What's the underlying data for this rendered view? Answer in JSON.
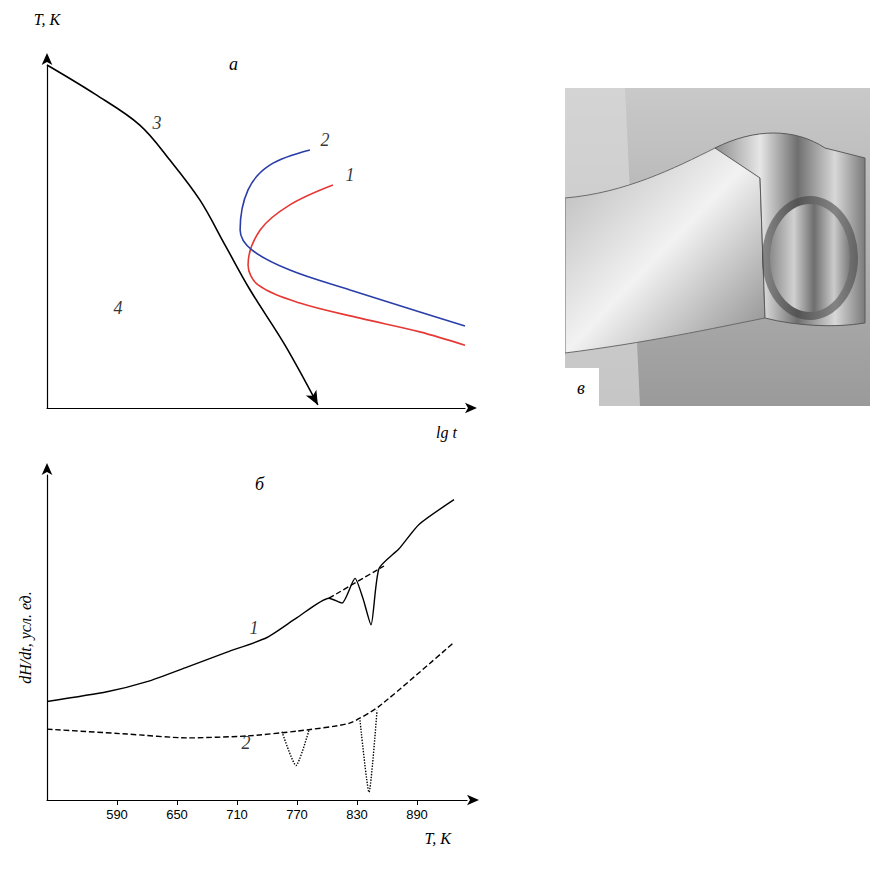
{
  "chart_data": [
    {
      "type": "line",
      "title": "а",
      "x_label": "lg t",
      "y_label": "T, K",
      "xlim": [
        0,
        100
      ],
      "ylim": [
        0,
        100
      ],
      "tick_labels": false,
      "series": [
        {
          "color": "#e53935",
          "line_style": "solid",
          "marker": "none",
          "x": [
            68.4,
            58.1,
            51.0,
            48.1,
            50.5,
            60.5,
            74.9,
            89.2,
            100
          ],
          "values": [
            65.0,
            59.2,
            51.9,
            41.7,
            35.9,
            30.6,
            26.2,
            22.2,
            18.3
          ]
        },
        {
          "color": "#2a3ea8",
          "line_style": "solid",
          "marker": "none",
          "x": [
            62.9,
            53.3,
            48.1,
            46.2,
            49.0,
            58.1,
            72.5,
            89.2,
            100
          ],
          "values": [
            75.2,
            70.8,
            63.6,
            51.9,
            46.1,
            40.2,
            34.4,
            28.0,
            23.9
          ]
        },
        {
          "color": "#000000",
          "line_style": "solid",
          "marker": "arrow",
          "x": [
            0,
            11.5,
            22.2,
            29.4,
            36.6,
            42.6,
            48.6,
            56.9,
            64.8
          ],
          "values": [
            100,
            91.5,
            82.5,
            72.3,
            60.6,
            47.5,
            34.4,
            18.4,
            0.9
          ]
        }
      ],
      "annotations": [
        {
          "text": "1",
          "x": 72.5,
          "y": 67.9
        },
        {
          "text": "2",
          "x": 66.5,
          "y": 78.1
        },
        {
          "text": "3",
          "x": 26.3,
          "y": 83.1
        },
        {
          "text": "4",
          "x": 17.0,
          "y": 29.2
        }
      ]
    },
    {
      "type": "line",
      "title": "б",
      "x_label": "T, K",
      "y_label": "dH/dt, усл. ед.",
      "xlim": [
        520,
        940
      ],
      "xticks": [
        590,
        650,
        710,
        770,
        830,
        890
      ],
      "ylim": [
        0,
        100
      ],
      "tick_labels": "x",
      "series": [
        {
          "color": "#000000",
          "line_style": "solid",
          "marker": "none",
          "x": [
            520,
            580,
            620,
            660,
            700,
            740,
            770,
            802,
            815,
            828,
            836,
            844,
            852,
            872,
            892,
            927
          ],
          "values": [
            30.3,
            33.3,
            36.4,
            40.9,
            45.5,
            50.0,
            56.1,
            62.1,
            60.6,
            68.2,
            62.0,
            53.9,
            71.2,
            77.3,
            84.8,
            92.4
          ]
        },
        {
          "color": "#000000",
          "line_style": "dashed",
          "marker": "none",
          "x": [
            802,
            857
          ],
          "values": [
            62.1,
            72.0
          ]
        },
        {
          "color": "#000000",
          "line_style": "dashed",
          "marker": "none",
          "x": [
            520,
            600,
            660,
            720,
            770,
            822,
            852,
            927
          ],
          "values": [
            21.8,
            20.3,
            19.1,
            19.7,
            21.2,
            23.6,
            28.8,
            48.5
          ]
        },
        {
          "color": "#000000",
          "line_style": "dotted",
          "marker": "none",
          "x": [
            755,
            769,
            782
          ],
          "values": [
            21.0,
            10.6,
            21.5
          ]
        },
        {
          "color": "#000000",
          "line_style": "dotted",
          "marker": "none",
          "x": [
            833,
            842,
            850
          ],
          "values": [
            24.5,
            2.4,
            27.5
          ]
        }
      ],
      "annotations": [
        {
          "text": "1",
          "x": 727,
          "y": 53.0
        },
        {
          "text": "2",
          "x": 719,
          "y": 17.6
        }
      ]
    }
  ],
  "image": {
    "label": "в"
  }
}
